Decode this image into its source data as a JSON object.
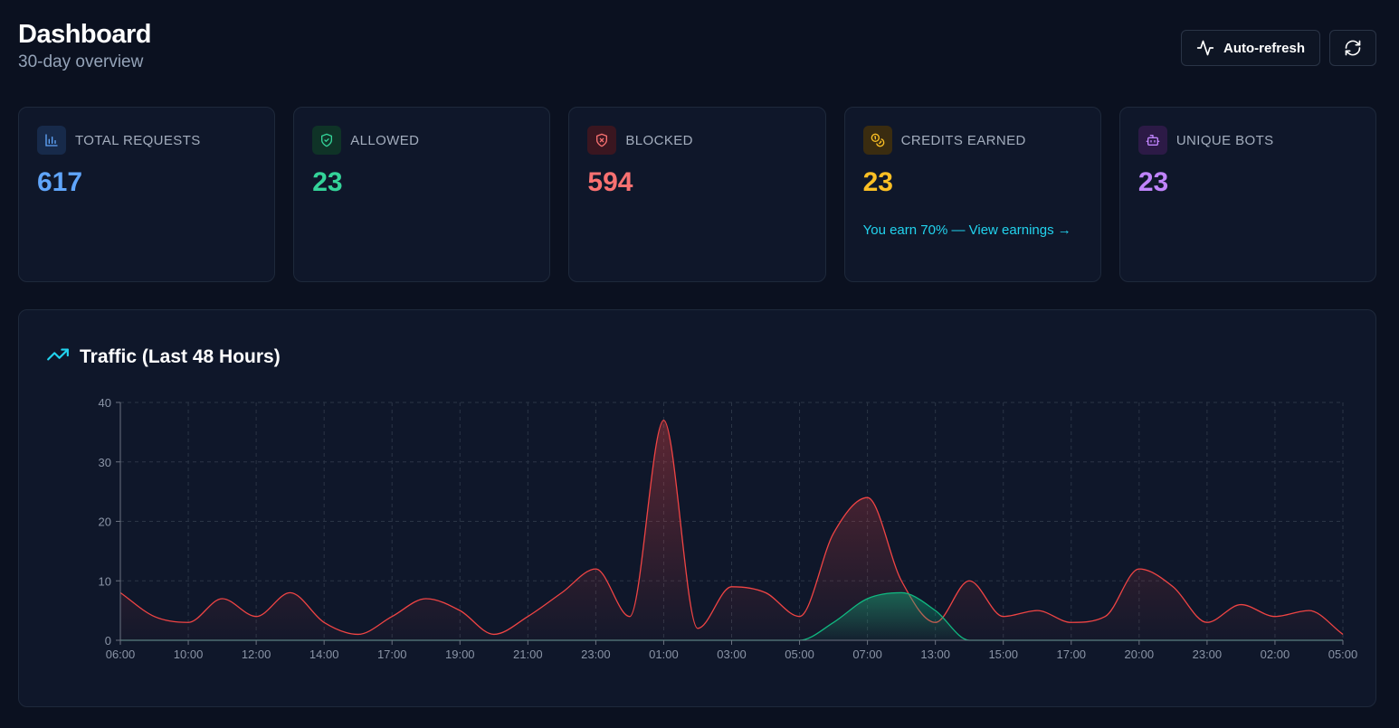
{
  "header": {
    "title": "Dashboard",
    "subtitle": "30-day overview"
  },
  "actions": {
    "auto_refresh_label": "Auto-refresh",
    "auto_refresh_icon": "activity-icon",
    "refresh_icon": "refresh-icon"
  },
  "cards": [
    {
      "label": "TOTAL REQUESTS",
      "value": "617",
      "color": "#60a5fa",
      "icon": "bar-chart-icon"
    },
    {
      "label": "ALLOWED",
      "value": "23",
      "color": "#34d399",
      "icon": "shield-check-icon"
    },
    {
      "label": "BLOCKED",
      "value": "594",
      "color": "#f87171",
      "icon": "shield-x-icon"
    },
    {
      "label": "CREDITS EARNED",
      "value": "23",
      "color": "#fbbf24",
      "icon": "coins-icon",
      "link": "You earn 70% — View earnings →"
    },
    {
      "label": "UNIQUE BOTS",
      "value": "23",
      "color": "#c084fc",
      "icon": "bot-icon"
    }
  ],
  "traffic": {
    "title": "Traffic (Last 48 Hours)",
    "icon": "trending-up-icon"
  },
  "chart_data": {
    "type": "area",
    "title": "Traffic (Last 48 Hours)",
    "xlabel": "",
    "ylabel": "",
    "ylim": [
      0,
      40
    ],
    "yticks": [
      0,
      10,
      20,
      30,
      40
    ],
    "x_tick_labels": [
      "06:00",
      "10:00",
      "12:00",
      "14:00",
      "17:00",
      "19:00",
      "21:00",
      "23:00",
      "01:00",
      "03:00",
      "05:00",
      "07:00",
      "13:00",
      "15:00",
      "17:00",
      "20:00",
      "23:00",
      "02:00",
      "05:00"
    ],
    "grid": true,
    "series": [
      {
        "color": "#ef4444",
        "values": [
          8,
          4,
          3,
          7,
          4,
          8,
          3,
          1,
          4,
          7,
          5,
          1,
          4,
          8,
          12,
          4,
          37,
          2,
          9,
          8,
          4,
          18,
          24,
          10,
          3,
          10,
          4,
          5,
          3,
          4,
          12,
          9,
          3,
          6,
          4,
          5,
          1
        ]
      },
      {
        "color": "#10b981",
        "values": [
          0,
          0,
          0,
          0,
          0,
          0,
          0,
          0,
          0,
          0,
          0,
          0,
          0,
          0,
          0,
          0,
          0,
          0,
          0,
          0,
          0,
          3,
          7,
          8,
          5,
          0,
          0,
          0,
          0,
          0,
          0,
          0,
          0,
          0,
          0,
          0,
          0
        ]
      }
    ]
  }
}
